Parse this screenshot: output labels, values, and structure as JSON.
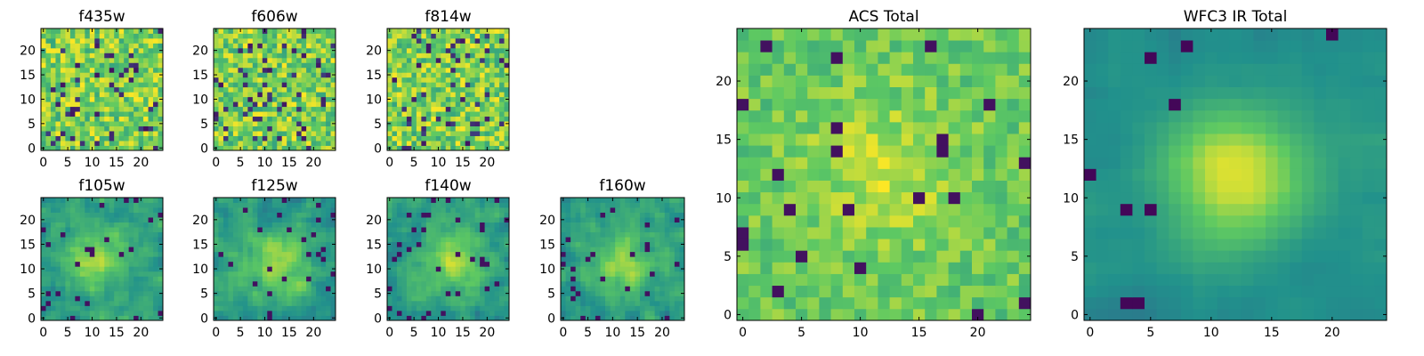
{
  "chart_data": [
    {
      "type": "heatmap",
      "title": "f435w",
      "grid_size": 25,
      "colormap": "viridis",
      "xlim": [
        0,
        24
      ],
      "ylim": [
        0,
        24
      ],
      "xticks": [
        0,
        5,
        10,
        15,
        20
      ],
      "yticks": [
        0,
        5,
        10,
        15,
        20
      ],
      "texture": "noise",
      "seed": 11
    },
    {
      "type": "heatmap",
      "title": "f606w",
      "grid_size": 25,
      "colormap": "viridis",
      "xlim": [
        0,
        24
      ],
      "ylim": [
        0,
        24
      ],
      "xticks": [
        0,
        5,
        10,
        15,
        20
      ],
      "yticks": [
        0,
        5,
        10,
        15,
        20
      ],
      "texture": "noise",
      "seed": 23
    },
    {
      "type": "heatmap",
      "title": "f814w",
      "grid_size": 25,
      "colormap": "viridis",
      "xlim": [
        0,
        24
      ],
      "ylim": [
        0,
        24
      ],
      "xticks": [
        0,
        5,
        10,
        15,
        20
      ],
      "yticks": [
        0,
        5,
        10,
        15,
        20
      ],
      "texture": "noise",
      "seed": 37
    },
    {
      "type": "heatmap",
      "title": "f105w",
      "grid_size": 25,
      "colormap": "viridis",
      "xlim": [
        0,
        24
      ],
      "ylim": [
        0,
        24
      ],
      "xticks": [
        0,
        5,
        10,
        15,
        20
      ],
      "yticks": [
        0,
        5,
        10,
        15,
        20
      ],
      "texture": "blob",
      "seed": 41,
      "peak": [
        11,
        12
      ]
    },
    {
      "type": "heatmap",
      "title": "f125w",
      "grid_size": 25,
      "colormap": "viridis",
      "xlim": [
        0,
        24
      ],
      "ylim": [
        0,
        24
      ],
      "xticks": [
        0,
        5,
        10,
        15,
        20
      ],
      "yticks": [
        0,
        5,
        10,
        15,
        20
      ],
      "texture": "blob",
      "seed": 53,
      "peak": [
        13,
        11
      ]
    },
    {
      "type": "heatmap",
      "title": "f140w",
      "grid_size": 25,
      "colormap": "viridis",
      "xlim": [
        0,
        24
      ],
      "ylim": [
        0,
        24
      ],
      "xticks": [
        0,
        5,
        10,
        15,
        20
      ],
      "yticks": [
        0,
        5,
        10,
        15,
        20
      ],
      "texture": "blob",
      "seed": 67,
      "peak": [
        13,
        12
      ]
    },
    {
      "type": "heatmap",
      "title": "f160w",
      "grid_size": 25,
      "colormap": "viridis",
      "xlim": [
        0,
        24
      ],
      "ylim": [
        0,
        24
      ],
      "xticks": [
        0,
        5,
        10,
        15,
        20
      ],
      "yticks": [
        0,
        5,
        10,
        15,
        20
      ],
      "texture": "blob",
      "seed": 79,
      "peak": [
        12,
        11
      ]
    },
    {
      "type": "heatmap",
      "title": "ACS Total",
      "grid_size": 25,
      "colormap": "viridis",
      "xlim": [
        0,
        24
      ],
      "ylim": [
        0,
        24
      ],
      "xticks": [
        0,
        5,
        10,
        15,
        20
      ],
      "yticks": [
        0,
        5,
        10,
        15,
        20
      ],
      "texture": "coarse",
      "seed": 89,
      "peak": [
        12,
        12
      ]
    },
    {
      "type": "heatmap",
      "title": "WFC3 IR Total",
      "grid_size": 25,
      "colormap": "viridis",
      "xlim": [
        0,
        24
      ],
      "ylim": [
        0,
        24
      ],
      "xticks": [
        0,
        5,
        10,
        15,
        20
      ],
      "yticks": [
        0,
        5,
        10,
        15,
        20
      ],
      "texture": "smooth",
      "seed": 97,
      "peak": [
        12,
        12
      ]
    }
  ]
}
